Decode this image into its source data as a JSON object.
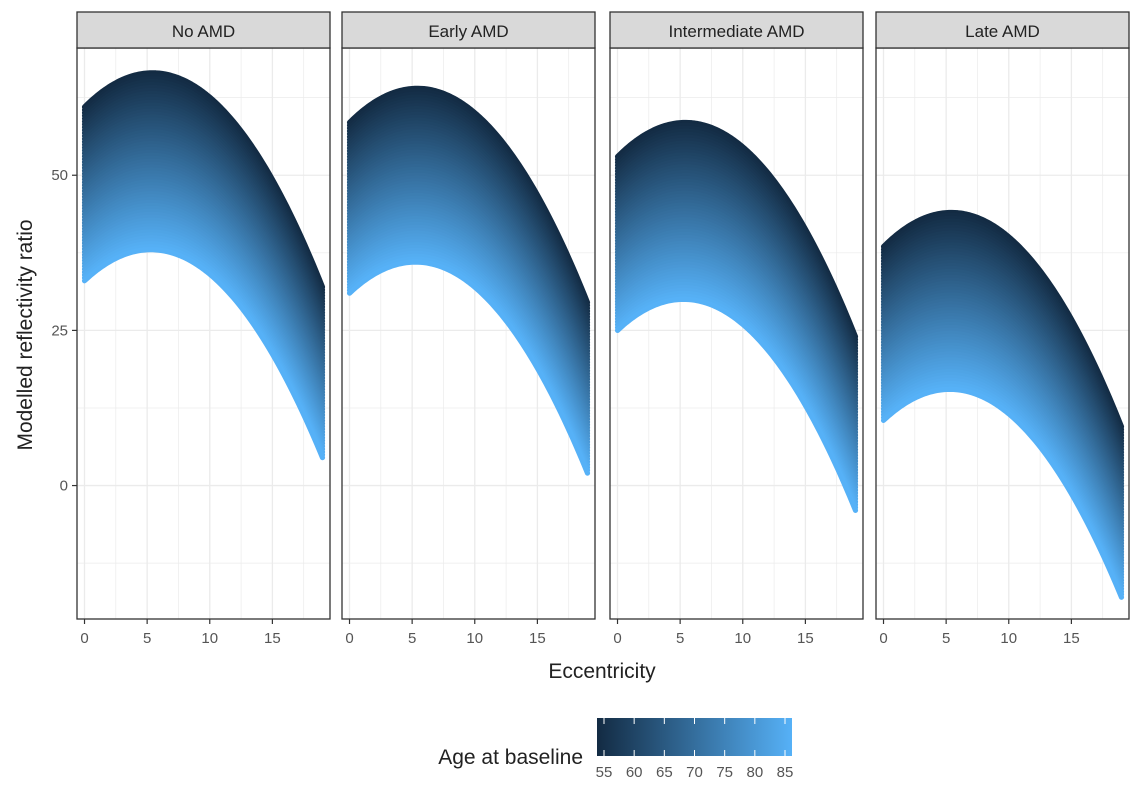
{
  "chart_data": {
    "type": "area",
    "xlabel": "Eccentricity",
    "ylabel": "Modelled reflectivity ratio",
    "xlim": [
      -0.6,
      19.6
    ],
    "ylim": [
      -21.5,
      70.5
    ],
    "x_ticks": [
      0,
      5,
      10,
      15
    ],
    "y_ticks": [
      0,
      25,
      50
    ],
    "grid": true,
    "facets": [
      {
        "label": "No AMD",
        "x": [
          0,
          5.5,
          19
        ],
        "series": [
          {
            "age": 55,
            "y": [
              61,
              66.5,
              32
            ]
          },
          {
            "age": 85,
            "y": [
              33,
              38,
              4.5
            ]
          }
        ]
      },
      {
        "label": "Early AMD",
        "x": [
          0,
          5.5,
          19
        ],
        "series": [
          {
            "age": 55,
            "y": [
              58.5,
              64,
              29.5
            ]
          },
          {
            "age": 85,
            "y": [
              31,
              36,
              2
            ]
          }
        ]
      },
      {
        "label": "Intermediate AMD",
        "x": [
          0,
          5.5,
          19
        ],
        "series": [
          {
            "age": 55,
            "y": [
              53,
              58.5,
              24
            ]
          },
          {
            "age": 85,
            "y": [
              25,
              30,
              -4
            ]
          }
        ]
      },
      {
        "label": "Late AMD",
        "x": [
          0,
          5.5,
          19
        ],
        "series": [
          {
            "age": 55,
            "y": [
              38.5,
              44,
              9.5
            ]
          },
          {
            "age": 85,
            "y": [
              10.5,
              15.5,
              -18
            ]
          }
        ]
      }
    ],
    "legend": {
      "title": "Age at baseline",
      "placement": "bottom",
      "min": 55,
      "max": 85,
      "ticks": [
        55,
        60,
        65,
        70,
        75,
        80,
        85
      ],
      "color_low": "#132B43",
      "color_high": "#56B1F7"
    }
  }
}
